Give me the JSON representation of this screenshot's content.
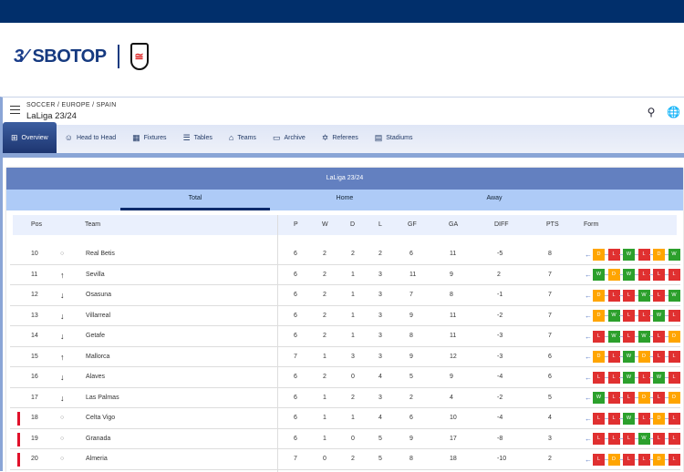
{
  "brand": {
    "logo_text": "SBOTOP",
    "crest": "Fulham FC"
  },
  "header": {
    "breadcrumb": "SOCCER / EUROPE / SPAIN",
    "title": "LaLiga 23/24",
    "menu_icon": "hamburger-icon",
    "search_icon": "search-icon",
    "globe_icon": "globe-settings-icon"
  },
  "nav": {
    "tabs": [
      {
        "label": "Overview",
        "icon": "grid-icon",
        "active": true
      },
      {
        "label": "Head to Head",
        "icon": "people-icon"
      },
      {
        "label": "Fixtures",
        "icon": "calendar-icon"
      },
      {
        "label": "Tables",
        "icon": "table-icon"
      },
      {
        "label": "Teams",
        "icon": "shirt-icon"
      },
      {
        "label": "Archive",
        "icon": "folder-icon"
      },
      {
        "label": "Referees",
        "icon": "whistle-icon"
      },
      {
        "label": "Stadiums",
        "icon": "stadium-icon"
      }
    ]
  },
  "table": {
    "league": "LaLiga 23/24",
    "subtabs": [
      "Total",
      "Home",
      "Away"
    ],
    "active_subtab": "Total",
    "columns": [
      "Pos",
      "Team",
      "P",
      "W",
      "D",
      "L",
      "GF",
      "GA",
      "DIFF",
      "PTS",
      "Form"
    ],
    "rows": [
      {
        "pos": "10",
        "trend": "same",
        "team": "Real Betis",
        "p": "6",
        "w": "2",
        "d": "2",
        "l": "2",
        "gf": "6",
        "ga": "11",
        "diff": "-5",
        "pts": "8",
        "form": [
          "D",
          "L",
          "W",
          "L",
          "D",
          "W"
        ]
      },
      {
        "pos": "11",
        "trend": "up",
        "team": "Sevilla",
        "p": "6",
        "w": "2",
        "d": "1",
        "l": "3",
        "gf": "11",
        "ga": "9",
        "diff": "2",
        "pts": "7",
        "form": [
          "W",
          "D",
          "W",
          "L",
          "L",
          "L"
        ]
      },
      {
        "pos": "12",
        "trend": "down",
        "team": "Osasuna",
        "p": "6",
        "w": "2",
        "d": "1",
        "l": "3",
        "gf": "7",
        "ga": "8",
        "diff": "-1",
        "pts": "7",
        "form": [
          "D",
          "L",
          "L",
          "W",
          "L",
          "W"
        ]
      },
      {
        "pos": "13",
        "trend": "down",
        "team": "Villarreal",
        "p": "6",
        "w": "2",
        "d": "1",
        "l": "3",
        "gf": "9",
        "ga": "11",
        "diff": "-2",
        "pts": "7",
        "form": [
          "D",
          "W",
          "L",
          "L",
          "W",
          "L"
        ]
      },
      {
        "pos": "14",
        "trend": "down",
        "team": "Getafe",
        "p": "6",
        "w": "2",
        "d": "1",
        "l": "3",
        "gf": "8",
        "ga": "11",
        "diff": "-3",
        "pts": "7",
        "form": [
          "L",
          "W",
          "L",
          "W",
          "L",
          "D"
        ]
      },
      {
        "pos": "15",
        "trend": "up",
        "team": "Mallorca",
        "p": "7",
        "w": "1",
        "d": "3",
        "l": "3",
        "gf": "9",
        "ga": "12",
        "diff": "-3",
        "pts": "6",
        "form": [
          "D",
          "L",
          "W",
          "D",
          "L",
          "L"
        ]
      },
      {
        "pos": "16",
        "trend": "down",
        "team": "Alaves",
        "p": "6",
        "w": "2",
        "d": "0",
        "l": "4",
        "gf": "5",
        "ga": "9",
        "diff": "-4",
        "pts": "6",
        "form": [
          "L",
          "L",
          "W",
          "L",
          "W",
          "L"
        ]
      },
      {
        "pos": "17",
        "trend": "down",
        "team": "Las Palmas",
        "p": "6",
        "w": "1",
        "d": "2",
        "l": "3",
        "gf": "2",
        "ga": "4",
        "diff": "-2",
        "pts": "5",
        "form": [
          "W",
          "L",
          "L",
          "D",
          "L",
          "D"
        ]
      },
      {
        "pos": "18",
        "trend": "same",
        "team": "Celta Vigo",
        "p": "6",
        "w": "1",
        "d": "1",
        "l": "4",
        "gf": "6",
        "ga": "10",
        "diff": "-4",
        "pts": "4",
        "form": [
          "L",
          "L",
          "W",
          "L",
          "D",
          "L"
        ],
        "relegation": true
      },
      {
        "pos": "19",
        "trend": "same",
        "team": "Granada",
        "p": "6",
        "w": "1",
        "d": "0",
        "l": "5",
        "gf": "9",
        "ga": "17",
        "diff": "-8",
        "pts": "3",
        "form": [
          "L",
          "L",
          "L",
          "W",
          "L",
          "L"
        ],
        "relegation": true
      },
      {
        "pos": "20",
        "trend": "same",
        "team": "Almeria",
        "p": "7",
        "w": "0",
        "d": "2",
        "l": "5",
        "gf": "8",
        "ga": "18",
        "diff": "-10",
        "pts": "2",
        "form": [
          "L",
          "D",
          "L",
          "L",
          "D",
          "L"
        ],
        "relegation": true
      }
    ]
  },
  "colors": {
    "W": "#2ca02c",
    "D": "#ffa500",
    "L": "#e03030",
    "relegation": "#e0102a",
    "topbar": "#012f6b",
    "accent": "#22407a"
  }
}
